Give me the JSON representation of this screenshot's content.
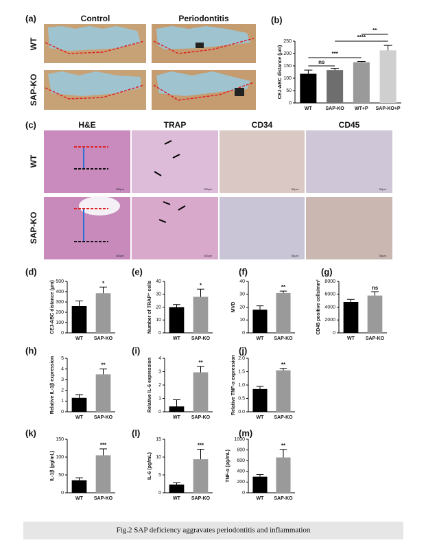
{
  "figure": {
    "a": {
      "label": "(a)",
      "columns": [
        "Control",
        "Periodontitis"
      ],
      "rows": [
        "WT",
        "SAP-KO"
      ]
    },
    "c": {
      "label": "(c)",
      "columns": [
        "H&E",
        "TRAP",
        "CD34",
        "CD45"
      ],
      "rows": [
        "WT",
        "SAP-KO"
      ],
      "scale_bars": [
        "200μm",
        "100μm",
        "50μm",
        "50μm"
      ]
    },
    "caption": "Fig.2 SAP deficiency aggravates periodontitis and inflammation"
  },
  "chart_data": [
    {
      "type": "bar",
      "label": "(b)",
      "ylabel": "CEJ-ABC distance (μm)",
      "categories": [
        "WT",
        "SAP-KO",
        "WT+P",
        "SAP-KO+P"
      ],
      "values": [
        118,
        133,
        165,
        213
      ],
      "errors": [
        15,
        7,
        3,
        20
      ],
      "colors": [
        "#000000",
        "#6e6e6e",
        "#9a9a9a",
        "#cfcfcf"
      ],
      "ylim": [
        0,
        250
      ],
      "yticks": [
        0,
        50,
        100,
        150,
        200,
        250
      ],
      "annotations": [
        "ns",
        "***",
        "****",
        "**"
      ]
    },
    {
      "type": "bar",
      "label": "(d)",
      "ylabel": "CEJ-ABC distance (μm)",
      "categories": [
        "WT",
        "SAP-KO"
      ],
      "values": [
        260,
        385
      ],
      "errors": [
        50,
        60
      ],
      "colors": [
        "#000000",
        "#9a9a9a"
      ],
      "ylim": [
        0,
        500
      ],
      "yticks": [
        0,
        100,
        200,
        300,
        400,
        500
      ],
      "annotations": [
        "*"
      ]
    },
    {
      "type": "bar",
      "label": "(e)",
      "ylabel": "Number of TRAP⁺ cells",
      "categories": [
        "WT",
        "SAP-KO"
      ],
      "values": [
        20,
        28
      ],
      "errors": [
        2,
        6
      ],
      "colors": [
        "#000000",
        "#9a9a9a"
      ],
      "ylim": [
        0,
        40
      ],
      "yticks": [
        0,
        10,
        20,
        30,
        40
      ],
      "annotations": [
        "*"
      ]
    },
    {
      "type": "bar",
      "label": "(f)",
      "ylabel": "MVD",
      "categories": [
        "WT",
        "SAP-KO"
      ],
      "values": [
        18,
        31
      ],
      "errors": [
        3,
        1.5
      ],
      "colors": [
        "#000000",
        "#9a9a9a"
      ],
      "ylim": [
        0,
        40
      ],
      "yticks": [
        0,
        10,
        20,
        30,
        40
      ],
      "annotations": [
        "**"
      ]
    },
    {
      "type": "bar",
      "label": "(g)",
      "ylabel": "CD45 positive cells/mm²",
      "categories": [
        "WT",
        "SAP-KO"
      ],
      "values": [
        4800,
        5800
      ],
      "errors": [
        400,
        600
      ],
      "colors": [
        "#000000",
        "#9a9a9a"
      ],
      "ylim": [
        0,
        8000
      ],
      "yticks": [
        0,
        2000,
        4000,
        6000,
        8000
      ],
      "annotations": [
        "ns"
      ]
    },
    {
      "type": "bar",
      "label": "(h)",
      "ylabel": "Relative IL-1β expression",
      "categories": [
        "WT",
        "SAP-KO"
      ],
      "values": [
        1.3,
        3.5
      ],
      "errors": [
        0.3,
        0.5
      ],
      "colors": [
        "#000000",
        "#9a9a9a"
      ],
      "ylim": [
        0,
        5
      ],
      "yticks": [
        0,
        1,
        2,
        3,
        4,
        5
      ],
      "annotations": [
        "**"
      ]
    },
    {
      "type": "bar",
      "label": "(i)",
      "ylabel": "Relative IL-6 expression",
      "categories": [
        "WT",
        "SAP-KO"
      ],
      "values": [
        0.4,
        2.95
      ],
      "errors": [
        0.5,
        0.45
      ],
      "colors": [
        "#000000",
        "#9a9a9a"
      ],
      "ylim": [
        0,
        4
      ],
      "yticks": [
        0,
        1,
        2,
        3,
        4
      ],
      "annotations": [
        "**"
      ]
    },
    {
      "type": "bar",
      "label": "(j)",
      "ylabel": "Relative TNF-α expression",
      "categories": [
        "WT",
        "SAP-KO"
      ],
      "values": [
        0.85,
        1.55
      ],
      "errors": [
        0.1,
        0.07
      ],
      "colors": [
        "#000000",
        "#9a9a9a"
      ],
      "ylim": [
        0,
        2
      ],
      "yticks": [
        {
          "value": 0,
          "label": "0.0"
        },
        0.5,
        {
          "value": 1,
          "label": "1.0"
        },
        1.5,
        {
          "value": 2,
          "label": "2.0"
        }
      ],
      "annotations": [
        "**"
      ]
    },
    {
      "type": "bar",
      "label": "(k)",
      "ylabel": "IL-1β (pg/mL)",
      "categories": [
        "WT",
        "SAP-KO"
      ],
      "values": [
        35,
        105
      ],
      "errors": [
        7,
        18
      ],
      "colors": [
        "#000000",
        "#9a9a9a"
      ],
      "ylim": [
        0,
        150
      ],
      "yticks": [
        0,
        50,
        100,
        150
      ],
      "annotations": [
        "***"
      ]
    },
    {
      "type": "bar",
      "label": "(l)",
      "ylabel": "IL-6 (pg/mL)",
      "categories": [
        "WT",
        "SAP-KO"
      ],
      "values": [
        2.3,
        9.4
      ],
      "errors": [
        0.5,
        2.8
      ],
      "colors": [
        "#000000",
        "#9a9a9a"
      ],
      "ylim": [
        0,
        15
      ],
      "yticks": [
        0,
        5,
        10,
        15
      ],
      "annotations": [
        "***"
      ]
    },
    {
      "type": "bar",
      "label": "(m)",
      "ylabel": "TNF-α (pg/mL)",
      "categories": [
        "WT",
        "SAP-KO"
      ],
      "values": [
        300,
        660
      ],
      "errors": [
        40,
        150
      ],
      "colors": [
        "#000000",
        "#9a9a9a"
      ],
      "ylim": [
        0,
        1000
      ],
      "yticks": [
        0,
        200,
        400,
        600,
        800,
        1000
      ],
      "annotations": [
        "**"
      ]
    }
  ]
}
